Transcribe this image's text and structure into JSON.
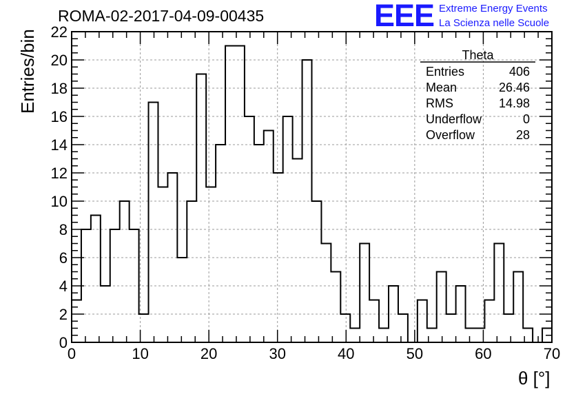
{
  "header": {
    "title": "ROMA-02-2017-04-09-00435",
    "logo_text": "EEE",
    "logo_line1": "Extreme Energy Events",
    "logo_line2": "La Scienza nelle Scuole",
    "logo_color": "#1a1aff"
  },
  "stats_box": {
    "name": "Theta",
    "rows": [
      {
        "label": "Entries",
        "value": "406"
      },
      {
        "label": "Mean",
        "value": "26.46"
      },
      {
        "label": "RMS",
        "value": "14.98"
      },
      {
        "label": "Underflow",
        "value": "0"
      },
      {
        "label": "Overflow",
        "value": "28"
      }
    ]
  },
  "chart_data": {
    "type": "bar",
    "histogram": true,
    "xlabel": "θ [°]",
    "ylabel": "Entries/bin",
    "xlim": [
      0,
      70
    ],
    "ylim": [
      0,
      22
    ],
    "bin_width": 1.4,
    "grid": true,
    "x_ticks": [
      "0",
      "10",
      "20",
      "30",
      "40",
      "50",
      "60",
      "70"
    ],
    "y_ticks": [
      "0",
      "2",
      "4",
      "6",
      "8",
      "10",
      "12",
      "14",
      "16",
      "18",
      "20",
      "22"
    ],
    "values": [
      3,
      8,
      9,
      4,
      8,
      10,
      8,
      2,
      17,
      11,
      12,
      6,
      10,
      19,
      11,
      14,
      21,
      21,
      16,
      14,
      15,
      12,
      16,
      13,
      20,
      10,
      7,
      5,
      2,
      1,
      7,
      3,
      1,
      4,
      2,
      0,
      3,
      1,
      5,
      2,
      4,
      1,
      1,
      3,
      7,
      2,
      5,
      1,
      0,
      1
    ],
    "line_color": "#000000"
  }
}
